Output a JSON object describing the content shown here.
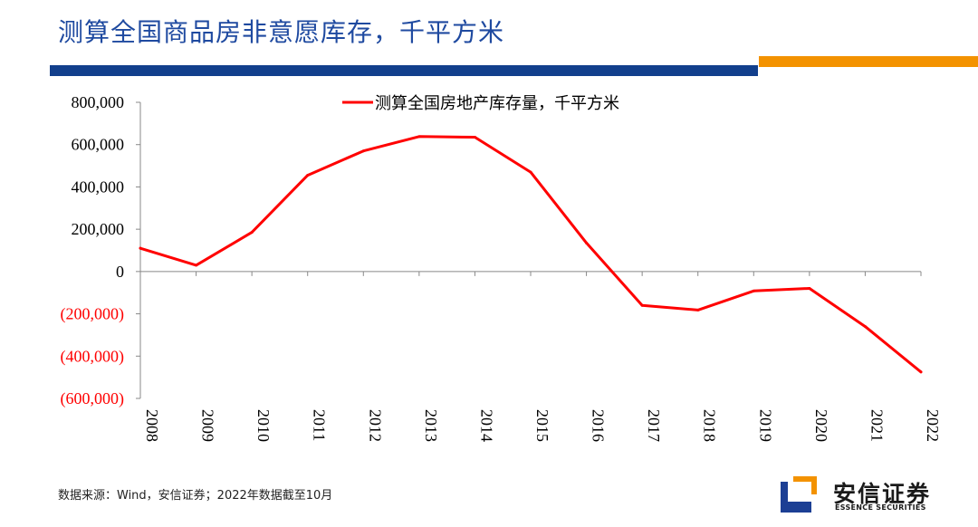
{
  "header": {
    "title": "测算全国商品房非意愿库存，千平方米",
    "bar_colors": {
      "blue": "#123f8c",
      "orange": "#f39200"
    }
  },
  "chart_data": {
    "type": "line",
    "x": [
      "2008",
      "2009",
      "2010",
      "2011",
      "2012",
      "2013",
      "2014",
      "2015",
      "2016",
      "2017",
      "2018",
      "2019",
      "2020",
      "2021",
      "2022"
    ],
    "series": [
      {
        "name": "测算全国房地产库存量，千平方米",
        "color": "#ff0000",
        "values": [
          110000,
          30000,
          185000,
          455000,
          570000,
          638000,
          635000,
          470000,
          135000,
          -160000,
          -182000,
          -92000,
          -80000,
          -260000,
          -475000
        ]
      }
    ],
    "ylim": [
      -600000,
      800000
    ],
    "yticks": [
      800000,
      600000,
      400000,
      200000,
      0,
      -200000,
      -400000,
      -600000
    ],
    "ytick_labels": [
      "800,000",
      "600,000",
      "400,000",
      "200,000",
      "0",
      "(200,000)",
      "(400,000)",
      "(600,000)"
    ],
    "negative_label_color": "#ff0000",
    "legend_position": "top",
    "grid": false,
    "title": "",
    "xlabel": "",
    "ylabel": ""
  },
  "footer": {
    "source": "数据来源：Wind，安信证券；2022年数据截至10月"
  },
  "brand": {
    "name_cn": "安信证券",
    "name_en": "ESSENCE SECURITIES",
    "logo_colors": {
      "blue": "#1c3f94",
      "orange": "#f39200"
    }
  }
}
